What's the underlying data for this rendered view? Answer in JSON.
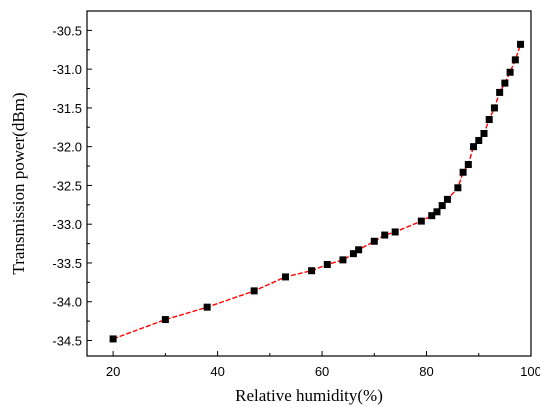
{
  "chart_data": {
    "type": "line",
    "title": "",
    "xlabel": "Relative humidity(%)",
    "ylabel": "Transmission power(dBm)",
    "xlim": [
      15,
      100
    ],
    "ylim": [
      -34.7,
      -30.25
    ],
    "x_ticks": [
      20,
      40,
      60,
      80,
      100
    ],
    "y_ticks": [
      -34.5,
      -34.0,
      -33.5,
      -33.0,
      -32.5,
      -32.0,
      -31.5,
      -31.0,
      -30.5
    ],
    "x_tick_labels": [
      "20",
      "40",
      "60",
      "80",
      "100"
    ],
    "y_tick_labels": [
      "-34.5",
      "-34.0",
      "-33.5",
      "-33.0",
      "-32.5",
      "-32.0",
      "-31.5",
      "-31.0",
      "-30.5"
    ],
    "grid": false,
    "line_color": "#ff0000",
    "marker_color": "#000000",
    "series": [
      {
        "x": [
          20,
          30,
          38,
          47,
          53,
          58,
          61,
          64,
          66,
          67,
          70,
          72,
          74,
          79,
          81,
          82,
          83,
          84,
          86,
          87,
          88,
          89,
          90,
          91,
          92,
          93,
          94,
          95,
          96,
          97,
          98
        ],
        "y": [
          -34.48,
          -34.23,
          -34.07,
          -33.86,
          -33.68,
          -33.6,
          -33.52,
          -33.46,
          -33.38,
          -33.33,
          -33.22,
          -33.14,
          -33.1,
          -32.96,
          -32.89,
          -32.84,
          -32.76,
          -32.68,
          -32.53,
          -32.33,
          -32.23,
          -32.0,
          -31.92,
          -31.83,
          -31.65,
          -31.5,
          -31.3,
          -31.18,
          -31.04,
          -30.88,
          -30.68
        ]
      }
    ]
  }
}
